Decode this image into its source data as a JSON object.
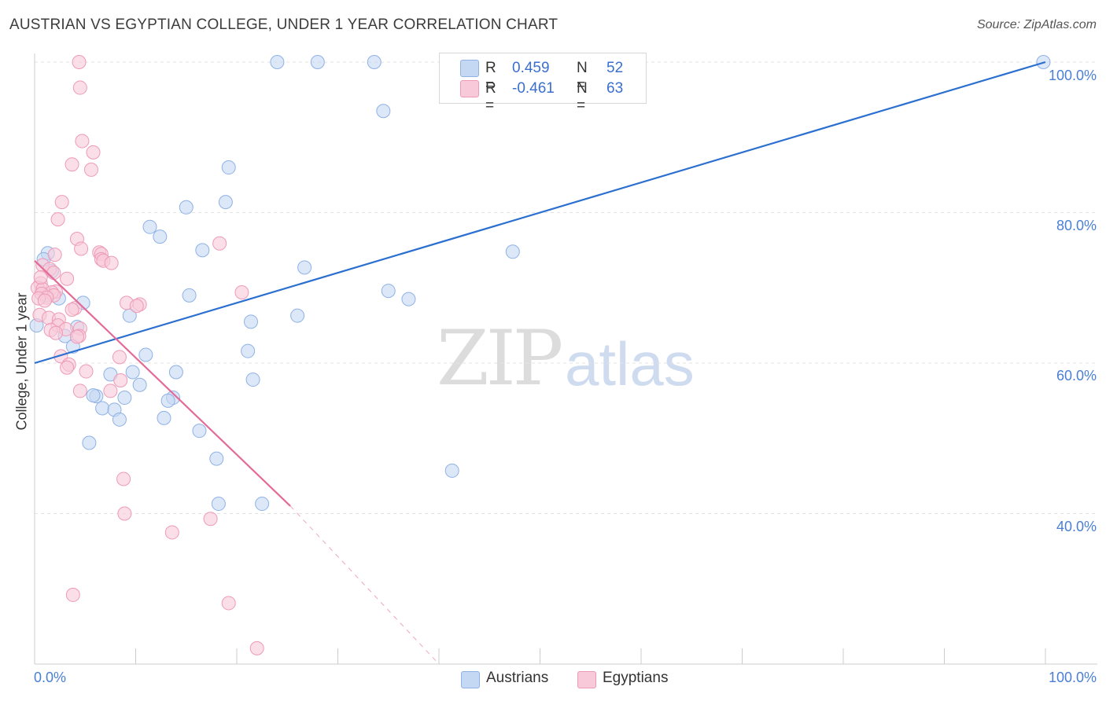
{
  "title": "AUSTRIAN VS EGYPTIAN COLLEGE, UNDER 1 YEAR CORRELATION CHART",
  "source": "Source: ZipAtlas.com",
  "watermark": {
    "zip": "ZIP",
    "atlas": "atlas"
  },
  "legend": {
    "r_label": "R =",
    "n_label": "N =",
    "austrians": {
      "r": "0.459",
      "n": "52"
    },
    "egyptians": {
      "r": "-0.461",
      "n": "63"
    }
  },
  "colors": {
    "austrians_fill": "#c5d8f3",
    "austrians_stroke": "#8fb1e6",
    "austrians_line": "#2b6fd0",
    "egyptians_fill": "#f8c9d8",
    "egyptians_stroke": "#ee9ab6",
    "egyptians_line": "#e46a98",
    "tick_label": "#4a7fd4"
  },
  "chart_data": {
    "type": "scatter",
    "title": "AUSTRIAN VS EGYPTIAN COLLEGE, UNDER 1 YEAR CORRELATION CHART",
    "xlabel": "",
    "ylabel": "College, Under 1 year",
    "xlim": [
      0,
      100
    ],
    "ylim": [
      18,
      100
    ],
    "x_tick_labels": [
      "0.0%",
      "100.0%"
    ],
    "y_ticks": [
      40,
      60,
      80,
      100
    ],
    "y_tick_labels": [
      "40.0%",
      "60.0%",
      "80.0%",
      "100.0%"
    ],
    "grid": "horizontal dashed",
    "legend_position": "top-center",
    "series": [
      {
        "name": "Austrians",
        "trend": {
          "x0": 0,
          "y0": 60.0,
          "x1": 100,
          "y1": 100.0
        },
        "points": [
          [
            24,
            100
          ],
          [
            28,
            100
          ],
          [
            33.6,
            100
          ],
          [
            99.8,
            100
          ],
          [
            34.5,
            93.5
          ],
          [
            19.2,
            86
          ],
          [
            18.9,
            81.4
          ],
          [
            15,
            80.7
          ],
          [
            11.4,
            78.1
          ],
          [
            12.4,
            76.8
          ],
          [
            16.6,
            75
          ],
          [
            47.3,
            74.8
          ],
          [
            1.3,
            74.6
          ],
          [
            0.9,
            73.8
          ],
          [
            1.7,
            72.2
          ],
          [
            26.7,
            72.7
          ],
          [
            35,
            69.6
          ],
          [
            15.3,
            69
          ],
          [
            1.2,
            69
          ],
          [
            2.4,
            68.6
          ],
          [
            4.8,
            68
          ],
          [
            37,
            68.5
          ],
          [
            26,
            66.3
          ],
          [
            9.4,
            66.3
          ],
          [
            21.4,
            65.5
          ],
          [
            4.2,
            64.8
          ],
          [
            3.0,
            63.6
          ],
          [
            3.8,
            62.2
          ],
          [
            0.2,
            65
          ],
          [
            11,
            61.1
          ],
          [
            21.1,
            61.6
          ],
          [
            7.5,
            58.5
          ],
          [
            9.7,
            58.8
          ],
          [
            14,
            58.8
          ],
          [
            10.4,
            57.1
          ],
          [
            21.6,
            57.8
          ],
          [
            6.1,
            55.6
          ],
          [
            5.8,
            55.7
          ],
          [
            8.9,
            55.4
          ],
          [
            13.7,
            55.4
          ],
          [
            13.2,
            55
          ],
          [
            6.7,
            54
          ],
          [
            7.9,
            53.8
          ],
          [
            8.4,
            52.5
          ],
          [
            12.8,
            52.7
          ],
          [
            16.3,
            51
          ],
          [
            5.4,
            49.4
          ],
          [
            18,
            47.3
          ],
          [
            41.3,
            45.7
          ],
          [
            18.2,
            41.3
          ],
          [
            22.5,
            41.3
          ],
          [
            52,
            96.3
          ]
        ]
      },
      {
        "name": "Egyptians",
        "trend": {
          "x0": 0,
          "y0": 73.6,
          "x1": 25.3,
          "y1": 41.0,
          "dash_to": {
            "x": 40,
            "y": 20
          }
        },
        "points": [
          [
            4.4,
            100
          ],
          [
            4.5,
            96.6
          ],
          [
            4.7,
            89.5
          ],
          [
            5.8,
            88
          ],
          [
            3.7,
            86.4
          ],
          [
            5.6,
            85.7
          ],
          [
            2.7,
            81.4
          ],
          [
            2.3,
            79.1
          ],
          [
            18.3,
            75.9
          ],
          [
            4.2,
            76.5
          ],
          [
            4.6,
            75.2
          ],
          [
            6.4,
            74.7
          ],
          [
            6.6,
            74.5
          ],
          [
            2.0,
            74.4
          ],
          [
            6.6,
            73.8
          ],
          [
            6.8,
            73.6
          ],
          [
            0.8,
            73
          ],
          [
            7.6,
            73.3
          ],
          [
            1.5,
            72.5
          ],
          [
            1.9,
            72
          ],
          [
            3.2,
            71.2
          ],
          [
            0.6,
            70.6
          ],
          [
            0.3,
            70
          ],
          [
            0.8,
            69.8
          ],
          [
            2.1,
            69.5
          ],
          [
            20.5,
            69.4
          ],
          [
            1.7,
            69.4
          ],
          [
            0.7,
            69.2
          ],
          [
            1.9,
            69
          ],
          [
            1.2,
            68.7
          ],
          [
            0.4,
            68.6
          ],
          [
            9.1,
            68
          ],
          [
            10.4,
            67.8
          ],
          [
            10.1,
            67.6
          ],
          [
            4.0,
            67.3
          ],
          [
            3.7,
            67.1
          ],
          [
            0.5,
            66.4
          ],
          [
            1.4,
            66
          ],
          [
            2.4,
            65.8
          ],
          [
            2.3,
            65
          ],
          [
            4.5,
            64.6
          ],
          [
            3.1,
            64.5
          ],
          [
            1.6,
            64.4
          ],
          [
            2.1,
            64
          ],
          [
            4.4,
            63.6
          ],
          [
            4.2,
            63.5
          ],
          [
            8.4,
            60.8
          ],
          [
            2.6,
            60.9
          ],
          [
            3.4,
            59.8
          ],
          [
            3.2,
            59.4
          ],
          [
            5.1,
            58.9
          ],
          [
            8.5,
            57.7
          ],
          [
            4.5,
            56.3
          ],
          [
            7.5,
            56.3
          ],
          [
            8.8,
            44.6
          ],
          [
            8.9,
            40
          ],
          [
            17.4,
            39.3
          ],
          [
            13.6,
            37.5
          ],
          [
            3.8,
            29.2
          ],
          [
            19.2,
            28.1
          ],
          [
            22,
            22.1
          ],
          [
            0.6,
            71.4
          ],
          [
            1.0,
            68.3
          ]
        ]
      }
    ]
  }
}
